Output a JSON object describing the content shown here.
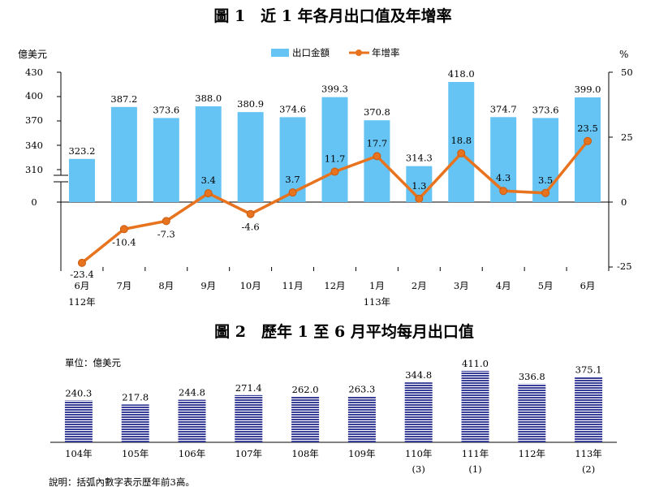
{
  "chart_data": [
    {
      "type": "bar+line",
      "title": "圖 1　近 1 年各月出口值及年增率",
      "ylabel_left": "億美元",
      "ylabel_right": "%",
      "legend": [
        "出口金額",
        "年增率"
      ],
      "legend_position": "top-right",
      "left_axis_ticks": [
        "430",
        "400",
        "370",
        "340",
        "310",
        "0"
      ],
      "right_axis_ticks": [
        "50",
        "25",
        "0",
        "-25"
      ],
      "right_ylim": [
        -25,
        50
      ],
      "categories": [
        "6月",
        "7月",
        "8月",
        "9月",
        "10月",
        "11月",
        "12月",
        "1月",
        "2月",
        "3月",
        "4月",
        "5月",
        "6月"
      ],
      "year_labels": [
        {
          "index": 0,
          "text": "112年"
        },
        {
          "index": 7,
          "text": "113年"
        }
      ],
      "series": [
        {
          "name": "出口金額",
          "kind": "bar",
          "color": "#66c4f4",
          "values": [
            323.2,
            387.2,
            373.6,
            388.0,
            380.9,
            374.6,
            399.3,
            370.8,
            314.3,
            418.0,
            374.7,
            373.6,
            399.0
          ],
          "labels": [
            "323.2",
            "387.2",
            "373.6",
            "388.0",
            "380.9",
            "374.6",
            "399.3",
            "370.8",
            "314.3",
            "418.0",
            "374.7",
            "373.6",
            "399.0"
          ]
        },
        {
          "name": "年增率",
          "kind": "line",
          "color": "#e8731e",
          "values": [
            -23.4,
            -10.4,
            -7.3,
            3.4,
            -4.6,
            3.7,
            11.7,
            17.7,
            1.3,
            18.8,
            4.3,
            3.5,
            23.5
          ],
          "labels": [
            "-23.4",
            "-10.4",
            "-7.3",
            "3.4",
            "-4.6",
            "3.7",
            "11.7",
            "17.7",
            "1.3",
            "18.8",
            "4.3",
            "3.5",
            "23.5"
          ]
        }
      ]
    },
    {
      "type": "bar",
      "title": "圖 2　歷年 1 至 6 月平均每月出口值",
      "unit_label": "單位：億美元",
      "bar_color": "#3a3f9a",
      "ylim": [
        0,
        420
      ],
      "categories": [
        "104年",
        "105年",
        "106年",
        "107年",
        "108年",
        "109年",
        "110年",
        "111年",
        "112年",
        "113年"
      ],
      "rank_labels": [
        "",
        "",
        "",
        "",
        "",
        "",
        "(3)",
        "(1)",
        "",
        "(2)"
      ],
      "values": [
        240.3,
        217.8,
        244.8,
        271.4,
        262.0,
        263.3,
        344.8,
        411.0,
        336.8,
        375.1
      ],
      "labels": [
        "240.3",
        "217.8",
        "244.8",
        "271.4",
        "262.0",
        "263.3",
        "344.8",
        "411.0",
        "336.8",
        "375.1"
      ],
      "footnote": "說明：括弧內數字表示歷年前3高。"
    }
  ]
}
